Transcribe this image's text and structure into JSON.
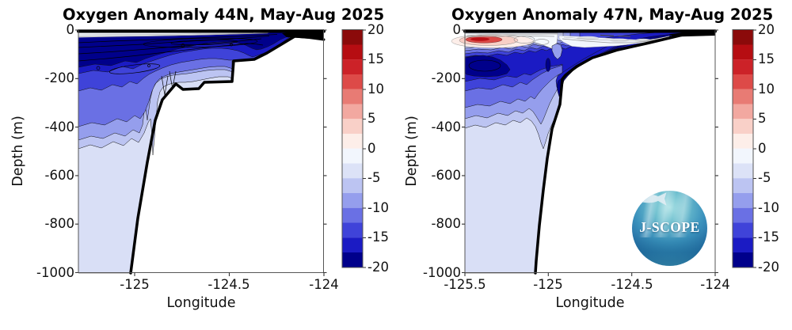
{
  "panels": [
    {
      "title": "Oxygen Anomaly 44N, May-Aug 2025",
      "xlabel": "Longitude",
      "ylabel": "Depth (m)",
      "yticks": [
        "0",
        "-200",
        "-400",
        "-600",
        "-800",
        "-1000"
      ],
      "xticks": [
        "-125",
        "-124.5",
        "-124"
      ]
    },
    {
      "title": "Oxygen Anomaly 47N, May-Aug 2025",
      "xlabel": "Longitude",
      "ylabel": "Depth (m)",
      "yticks": [
        "0",
        "-200",
        "-400",
        "-600",
        "-800",
        "-1000"
      ],
      "xticks": [
        "-125.5",
        "-125",
        "-124.5",
        "-124"
      ]
    }
  ],
  "colorbar": {
    "ticks": [
      "20",
      "15",
      "10",
      "5",
      "0",
      "-5",
      "-10",
      "-15",
      "-20"
    ],
    "range": [
      -20,
      20
    ],
    "step": 2.5,
    "colors_top_to_bottom": [
      "#8b0a0a",
      "#b60d12",
      "#cc2228",
      "#dd4a48",
      "#e87b74",
      "#f2a8a0",
      "#f9d0c8",
      "#fdeee9",
      "#f2f6fd",
      "#dce2f7",
      "#bcc4f2",
      "#959eed",
      "#6a70e4",
      "#3f43d9",
      "#1b1bc4",
      "#00008b"
    ]
  },
  "logo": {
    "text": "J-SCOPE"
  },
  "chart_data": [
    {
      "type": "heatmap",
      "title": "Oxygen Anomaly 44N, May-Aug 2025",
      "xlabel": "Longitude",
      "ylabel": "Depth (m)",
      "xlim": [
        -125.3,
        -124.0
      ],
      "ylim": [
        -1000,
        0
      ],
      "xticks": [
        -125,
        -124.5,
        -124
      ],
      "yticks": [
        0,
        -200,
        -400,
        -600,
        -800,
        -1000
      ],
      "colormap": "blue-white-red, 16 discrete levels",
      "color_range": [
        -20,
        20
      ],
      "contour_interval": 2.5,
      "legend_position": "right colorbar",
      "grid": false,
      "bathymetry_lon_depth_m": [
        [
          -124.04,
          -5
        ],
        [
          -124.16,
          -26
        ],
        [
          -124.3,
          -95
        ],
        [
          -124.37,
          -121
        ],
        [
          -124.48,
          -127
        ],
        [
          -124.48,
          -209
        ],
        [
          -124.63,
          -212
        ],
        [
          -124.66,
          -241
        ],
        [
          -124.75,
          -245
        ],
        [
          -124.78,
          -222
        ],
        [
          -124.85,
          -287
        ],
        [
          -124.89,
          -372
        ],
        [
          -124.93,
          -545
        ],
        [
          -124.98,
          -777
        ],
        [
          -125.02,
          -1000
        ]
      ],
      "west_edge_anomaly_profile": [
        {
          "depth_range_m": [
            0,
            -30
          ],
          "anomaly": 0
        },
        {
          "depth_range_m": [
            -30,
            -150
          ],
          "anomaly": -20
        },
        {
          "depth_range_m": [
            -150,
            -180
          ],
          "anomaly": -16
        },
        {
          "depth_range_m": [
            -180,
            -250
          ],
          "anomaly": -13.75
        },
        {
          "depth_range_m": [
            -250,
            -400
          ],
          "anomaly": -11.25
        },
        {
          "depth_range_m": [
            -400,
            -455
          ],
          "anomaly": -8.75
        },
        {
          "depth_range_m": [
            -455,
            -490
          ],
          "anomaly": -6.25
        },
        {
          "depth_range_m": [
            -490,
            -1000
          ],
          "anomaly": -3.75
        }
      ],
      "notes": "Strong negative oxygen anomaly core (<= -20) between ~30 m and ~150 m depth across the whole section; near-zero thin layer right at the surface; anomalies weaken toward -2.5/-5 below ~500 m; thick black line is the seafloor shelving from ~-1000 m at -125.0 to ~0 m at -124.05 with a terrace near -210 m between -124.5 and -124.8."
    },
    {
      "type": "heatmap",
      "title": "Oxygen Anomaly 47N, May-Aug 2025",
      "xlabel": "Longitude",
      "ylabel": "Depth (m)",
      "xlim": [
        -125.5,
        -124.0
      ],
      "ylim": [
        -1000,
        0
      ],
      "xticks": [
        -125.5,
        -125,
        -124.5,
        -124
      ],
      "yticks": [
        0,
        -200,
        -400,
        -600,
        -800,
        -1000
      ],
      "colormap": "blue-white-red, 16 discrete levels",
      "color_range": [
        -20,
        20
      ],
      "contour_interval": 2.5,
      "legend_position": "right colorbar",
      "grid": false,
      "bathymetry_lon_depth_m": [
        [
          -124.05,
          -7
        ],
        [
          -124.19,
          -20
        ],
        [
          -124.39,
          -52
        ],
        [
          -124.58,
          -82
        ],
        [
          -124.73,
          -114
        ],
        [
          -124.83,
          -150
        ],
        [
          -124.9,
          -186
        ],
        [
          -124.91,
          -202
        ],
        [
          -124.93,
          -307
        ],
        [
          -124.98,
          -408
        ],
        [
          -125.0,
          -529
        ],
        [
          -125.03,
          -659
        ],
        [
          -125.05,
          -806
        ],
        [
          -125.08,
          -1000
        ]
      ],
      "west_edge_anomaly_profile": [
        {
          "depth_range_m": [
            0,
            -25
          ],
          "anomaly": 0
        },
        {
          "depth_range_m": [
            -25,
            -60
          ],
          "anomaly": 12.5
        },
        {
          "depth_range_m": [
            -60,
            -85
          ],
          "anomaly": -8.75
        },
        {
          "depth_range_m": [
            -85,
            -115
          ],
          "anomaly": -13.75
        },
        {
          "depth_range_m": [
            -115,
            -195
          ],
          "anomaly": -20
        },
        {
          "depth_range_m": [
            -195,
            -250
          ],
          "anomaly": -15
        },
        {
          "depth_range_m": [
            -250,
            -320
          ],
          "anomaly": -11.25
        },
        {
          "depth_range_m": [
            -320,
            -405
          ],
          "anomaly": -8
        },
        {
          "depth_range_m": [
            -405,
            -1000
          ],
          "anomaly": -3.75
        }
      ],
      "max_positive_anomaly": {
        "value": "+10 to +15",
        "lon_range": [
          -125.45,
          -125.25
        ],
        "depth_m": -40
      },
      "notes": "Positive anomaly patch (red, up to ~+15) just below the surface at the western edge; strong negative core (<= -20) at ~115-195 m hugging the slope; near-zero white band with packed grey contours over the shelf; seafloor drops steeply near -124.95."
    }
  ]
}
